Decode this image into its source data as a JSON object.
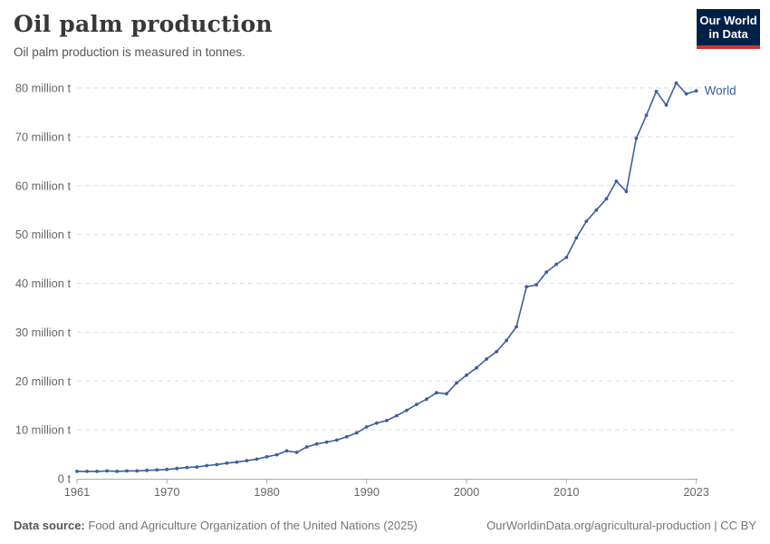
{
  "header": {
    "title": "Oil palm production",
    "subtitle": "Oil palm production is measured in tonnes."
  },
  "logo": {
    "line1": "Our World",
    "line2": "in Data"
  },
  "colors": {
    "series": "#3d5fa0",
    "grid": "#dddddd",
    "axis": "#a9a9a9",
    "tick_text": "#666666",
    "logo_bg": "#002147",
    "logo_accent": "#d0342c"
  },
  "chart_data": {
    "type": "line",
    "title": "Oil palm production",
    "unit": "tonnes",
    "grid": true,
    "legend_position": "end-of-line",
    "xlim": [
      1961,
      2023
    ],
    "ylim": [
      0,
      80000000
    ],
    "xticks": [
      1961,
      1970,
      1980,
      1990,
      2000,
      2010,
      2023
    ],
    "yticks": [
      {
        "value": 0,
        "label": "0 t"
      },
      {
        "value": 10000000,
        "label": "10 million t"
      },
      {
        "value": 20000000,
        "label": "20 million t"
      },
      {
        "value": 30000000,
        "label": "30 million t"
      },
      {
        "value": 40000000,
        "label": "40 million t"
      },
      {
        "value": 50000000,
        "label": "50 million t"
      },
      {
        "value": 60000000,
        "label": "60 million t"
      },
      {
        "value": 70000000,
        "label": "70 million t"
      },
      {
        "value": 80000000,
        "label": "80 million t"
      }
    ],
    "x": [
      1961,
      1962,
      1963,
      1964,
      1965,
      1966,
      1967,
      1968,
      1969,
      1970,
      1971,
      1972,
      1973,
      1974,
      1975,
      1976,
      1977,
      1978,
      1979,
      1980,
      1981,
      1982,
      1983,
      1984,
      1985,
      1986,
      1987,
      1988,
      1989,
      1990,
      1991,
      1992,
      1993,
      1994,
      1995,
      1996,
      1997,
      1998,
      1999,
      2000,
      2001,
      2002,
      2003,
      2004,
      2005,
      2006,
      2007,
      2008,
      2009,
      2010,
      2011,
      2012,
      2013,
      2014,
      2015,
      2016,
      2017,
      2018,
      2019,
      2020,
      2021,
      2022,
      2023
    ],
    "series": [
      {
        "name": "World",
        "values_million_t": [
          1.5,
          1.5,
          1.5,
          1.6,
          1.5,
          1.6,
          1.6,
          1.7,
          1.8,
          1.9,
          2.1,
          2.3,
          2.4,
          2.7,
          2.9,
          3.2,
          3.4,
          3.7,
          4.0,
          4.5,
          4.9,
          5.7,
          5.4,
          6.5,
          7.1,
          7.5,
          7.9,
          8.6,
          9.4,
          10.6,
          11.4,
          11.9,
          12.9,
          14.0,
          15.2,
          16.3,
          17.6,
          17.4,
          19.6,
          21.2,
          22.7,
          24.5,
          26.0,
          28.3,
          31.1,
          39.3,
          39.7,
          42.3,
          43.9,
          45.3,
          49.3,
          52.7,
          55.0,
          57.3,
          60.9,
          58.8,
          69.7,
          74.4,
          79.3,
          76.5,
          81.0,
          78.8,
          79.4
        ]
      }
    ]
  },
  "footer": {
    "source_label": "Data source:",
    "source_text": "Food and Agriculture Organization of the United Nations (2025)",
    "attribution": "OurWorldinData.org/agricultural-production | CC BY"
  }
}
